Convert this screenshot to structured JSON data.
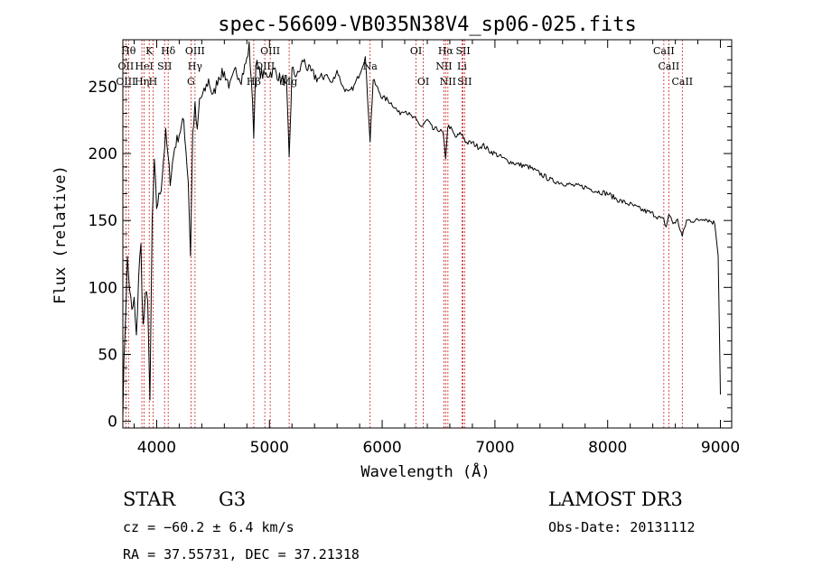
{
  "chart_data": {
    "type": "line",
    "title": "spec-56609-VB035N38V4_sp06-025.fits",
    "xlabel": "Wavelength (Å)",
    "ylabel": "Flux (relative)",
    "xlim": [
      3700,
      9100
    ],
    "ylim": [
      -5,
      285
    ],
    "xticks": [
      4000,
      5000,
      6000,
      7000,
      8000,
      9000
    ],
    "yticks": [
      0,
      50,
      100,
      150,
      200,
      250
    ],
    "grid": false,
    "series": [
      {
        "name": "spectrum",
        "x": [
          3700,
          3720,
          3740,
          3760,
          3780,
          3800,
          3820,
          3840,
          3860,
          3880,
          3900,
          3920,
          3940,
          3960,
          3980,
          4000,
          4040,
          4080,
          4120,
          4160,
          4200,
          4240,
          4280,
          4300,
          4320,
          4340,
          4360,
          4380,
          4420,
          4460,
          4500,
          4550,
          4600,
          4650,
          4700,
          4750,
          4800,
          4820,
          4840,
          4861,
          4880,
          4900,
          4950,
          5000,
          5050,
          5100,
          5150,
          5175,
          5200,
          5250,
          5300,
          5350,
          5400,
          5450,
          5500,
          5550,
          5600,
          5650,
          5700,
          5750,
          5800,
          5850,
          5893,
          5920,
          5950,
          6000,
          6050,
          6100,
          6150,
          6200,
          6250,
          6300,
          6350,
          6400,
          6450,
          6500,
          6540,
          6563,
          6580,
          6600,
          6650,
          6700,
          6750,
          6800,
          6850,
          6900,
          6950,
          7000,
          7100,
          7200,
          7300,
          7400,
          7500,
          7600,
          7700,
          7800,
          7900,
          8000,
          8100,
          8200,
          8300,
          8400,
          8498,
          8520,
          8542,
          8580,
          8620,
          8662,
          8700,
          8750,
          8800,
          8850,
          8900,
          8950,
          8980,
          9000
        ],
        "values": [
          10,
          70,
          120,
          100,
          80,
          90,
          60,
          110,
          130,
          70,
          90,
          95,
          10,
          150,
          190,
          160,
          175,
          215,
          180,
          205,
          215,
          225,
          180,
          125,
          215,
          235,
          215,
          240,
          245,
          255,
          242,
          258,
          260,
          250,
          262,
          256,
          270,
          280,
          255,
          215,
          270,
          262,
          258,
          260,
          262,
          255,
          255,
          195,
          262,
          258,
          270,
          262,
          258,
          255,
          260,
          252,
          262,
          250,
          245,
          250,
          260,
          272,
          210,
          255,
          250,
          242,
          240,
          236,
          230,
          233,
          228,
          225,
          220,
          225,
          218,
          218,
          215,
          195,
          220,
          220,
          212,
          215,
          208,
          208,
          205,
          206,
          202,
          200,
          195,
          192,
          190,
          185,
          180,
          178,
          176,
          175,
          172,
          170,
          165,
          162,
          158,
          155,
          150,
          145,
          155,
          148,
          150,
          138,
          150,
          150,
          150,
          152,
          150,
          148,
          125,
          20
        ]
      }
    ],
    "spectral_lines": [
      {
        "wavelength": 3750,
        "row": 1,
        "label": "Hθ"
      },
      {
        "wavelength": 3727,
        "row": 2,
        "label": "OII"
      },
      {
        "wavelength": 3727,
        "row": 3,
        "label": "OIII"
      },
      {
        "wavelength": 3869,
        "row": 3,
        "label": "Hη"
      },
      {
        "wavelength": 3934,
        "row": 1,
        "label": "K"
      },
      {
        "wavelength": 3889,
        "row": 2,
        "label": "HeI"
      },
      {
        "wavelength": 3968,
        "row": 3,
        "label": "H"
      },
      {
        "wavelength": 4070,
        "row": 2,
        "label": "SII"
      },
      {
        "wavelength": 4102,
        "row": 1,
        "label": "Hδ"
      },
      {
        "wavelength": 4340,
        "row": 1,
        "label": "OIII"
      },
      {
        "wavelength": 4340,
        "row": 2,
        "label": "Hγ"
      },
      {
        "wavelength": 4304,
        "row": 3,
        "label": "G"
      },
      {
        "wavelength": 5007,
        "row": 1,
        "label": "OIII"
      },
      {
        "wavelength": 4959,
        "row": 2,
        "label": "OIII"
      },
      {
        "wavelength": 4861,
        "row": 3,
        "label": "Hβ"
      },
      {
        "wavelength": 5175,
        "row": 3,
        "label": "Mg"
      },
      {
        "wavelength": 5893,
        "row": 2,
        "label": "Na"
      },
      {
        "wavelength": 6300,
        "row": 1,
        "label": "OI"
      },
      {
        "wavelength": 6364,
        "row": 3,
        "label": "OI"
      },
      {
        "wavelength": 6563,
        "row": 1,
        "label": "Hα"
      },
      {
        "wavelength": 6548,
        "row": 2,
        "label": "NII"
      },
      {
        "wavelength": 6583,
        "row": 3,
        "label": "NII"
      },
      {
        "wavelength": 6717,
        "row": 1,
        "label": "SII"
      },
      {
        "wavelength": 6708,
        "row": 2,
        "label": "Li"
      },
      {
        "wavelength": 6731,
        "row": 3,
        "label": "SII"
      },
      {
        "wavelength": 8498,
        "row": 1,
        "label": "CaII"
      },
      {
        "wavelength": 8542,
        "row": 2,
        "label": "CaII"
      },
      {
        "wavelength": 8662,
        "row": 3,
        "label": "CaII"
      }
    ]
  },
  "info": {
    "object_class": "STAR",
    "subclass": "G3",
    "survey": "LAMOST DR3",
    "redshift": "cz = −60.2 ± 6.4 km/s",
    "obs_date": "Obs-Date: 20131112",
    "coords": "RA =  37.55731, DEC =  37.21318"
  },
  "colors": {
    "line_marker": "#cc2222",
    "spectrum": "#000000",
    "axis": "#000000"
  }
}
